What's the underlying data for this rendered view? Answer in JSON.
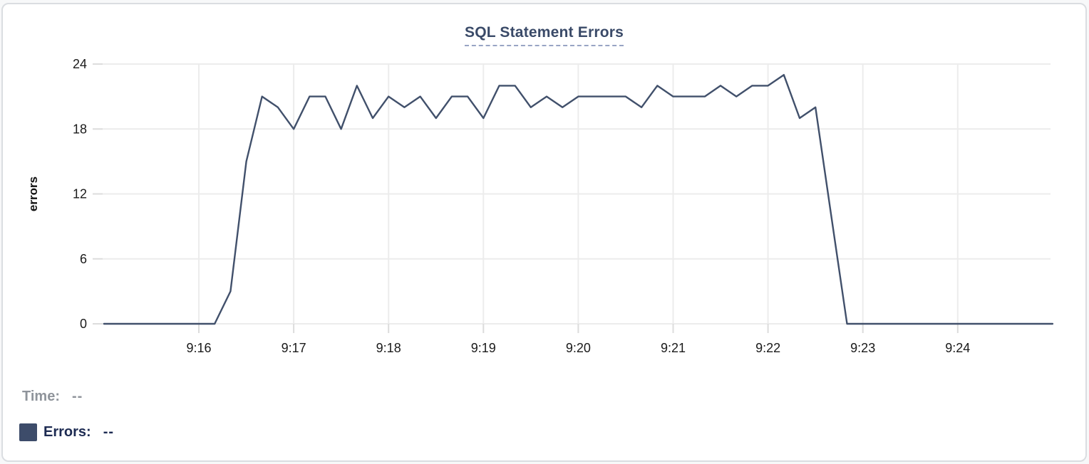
{
  "card": {
    "background": "#ffffff",
    "border_color": "#dadde1"
  },
  "chart": {
    "title": "SQL Statement Errors",
    "title_color": "#3a4a68",
    "title_underline_color": "#98a4c4",
    "y_axis_label": "errors",
    "colors": {
      "line": "#41506b",
      "grid": "#ececec",
      "tick": "#dcdcdc",
      "axis_text": "#1a1a1a"
    }
  },
  "legend": {
    "time_label": "Time:",
    "time_value": "--",
    "time_color": "#8f949b",
    "errors_label": "Errors:",
    "errors_value": "--",
    "errors_color": "#1d2b52",
    "swatch_color": "#3d4c6a"
  },
  "chart_data": {
    "type": "line",
    "title": "SQL Statement Errors",
    "xlabel": "",
    "ylabel": "errors",
    "ylim": [
      0,
      24
    ],
    "yticks": [
      0,
      6,
      12,
      18,
      24
    ],
    "x_tick_labels": [
      "9:16",
      "9:17",
      "9:18",
      "9:19",
      "9:20",
      "9:21",
      "9:22",
      "9:23",
      "9:24"
    ],
    "x_range": [
      "9:15:00",
      "9:25:00"
    ],
    "sample_interval_seconds": 10,
    "grid": true,
    "legend_position": "bottom-left",
    "series": [
      {
        "name": "Errors",
        "color": "#41506b",
        "points": [
          [
            "9:15:00",
            0
          ],
          [
            "9:15:10",
            0
          ],
          [
            "9:15:20",
            0
          ],
          [
            "9:15:30",
            0
          ],
          [
            "9:15:40",
            0
          ],
          [
            "9:15:50",
            0
          ],
          [
            "9:16:00",
            0
          ],
          [
            "9:16:10",
            0
          ],
          [
            "9:16:20",
            3
          ],
          [
            "9:16:30",
            15
          ],
          [
            "9:16:40",
            21
          ],
          [
            "9:16:50",
            20
          ],
          [
            "9:17:00",
            18
          ],
          [
            "9:17:10",
            21
          ],
          [
            "9:17:20",
            21
          ],
          [
            "9:17:30",
            18
          ],
          [
            "9:17:40",
            22
          ],
          [
            "9:17:50",
            19
          ],
          [
            "9:18:00",
            21
          ],
          [
            "9:18:10",
            20
          ],
          [
            "9:18:20",
            21
          ],
          [
            "9:18:30",
            19
          ],
          [
            "9:18:40",
            21
          ],
          [
            "9:18:50",
            21
          ],
          [
            "9:19:00",
            19
          ],
          [
            "9:19:10",
            22
          ],
          [
            "9:19:20",
            22
          ],
          [
            "9:19:30",
            20
          ],
          [
            "9:19:40",
            21
          ],
          [
            "9:19:50",
            20
          ],
          [
            "9:20:00",
            21
          ],
          [
            "9:20:10",
            21
          ],
          [
            "9:20:20",
            21
          ],
          [
            "9:20:30",
            21
          ],
          [
            "9:20:40",
            20
          ],
          [
            "9:20:50",
            22
          ],
          [
            "9:21:00",
            21
          ],
          [
            "9:21:10",
            21
          ],
          [
            "9:21:20",
            21
          ],
          [
            "9:21:30",
            22
          ],
          [
            "9:21:40",
            21
          ],
          [
            "9:21:50",
            22
          ],
          [
            "9:22:00",
            22
          ],
          [
            "9:22:10",
            23
          ],
          [
            "9:22:20",
            19
          ],
          [
            "9:22:30",
            20
          ],
          [
            "9:22:40",
            10
          ],
          [
            "9:22:50",
            0
          ],
          [
            "9:23:00",
            0
          ],
          [
            "9:23:10",
            0
          ],
          [
            "9:23:20",
            0
          ],
          [
            "9:23:30",
            0
          ],
          [
            "9:23:40",
            0
          ],
          [
            "9:23:50",
            0
          ],
          [
            "9:24:00",
            0
          ],
          [
            "9:24:10",
            0
          ],
          [
            "9:24:20",
            0
          ],
          [
            "9:24:30",
            0
          ],
          [
            "9:24:40",
            0
          ],
          [
            "9:24:50",
            0
          ],
          [
            "9:25:00",
            0
          ]
        ]
      }
    ]
  }
}
